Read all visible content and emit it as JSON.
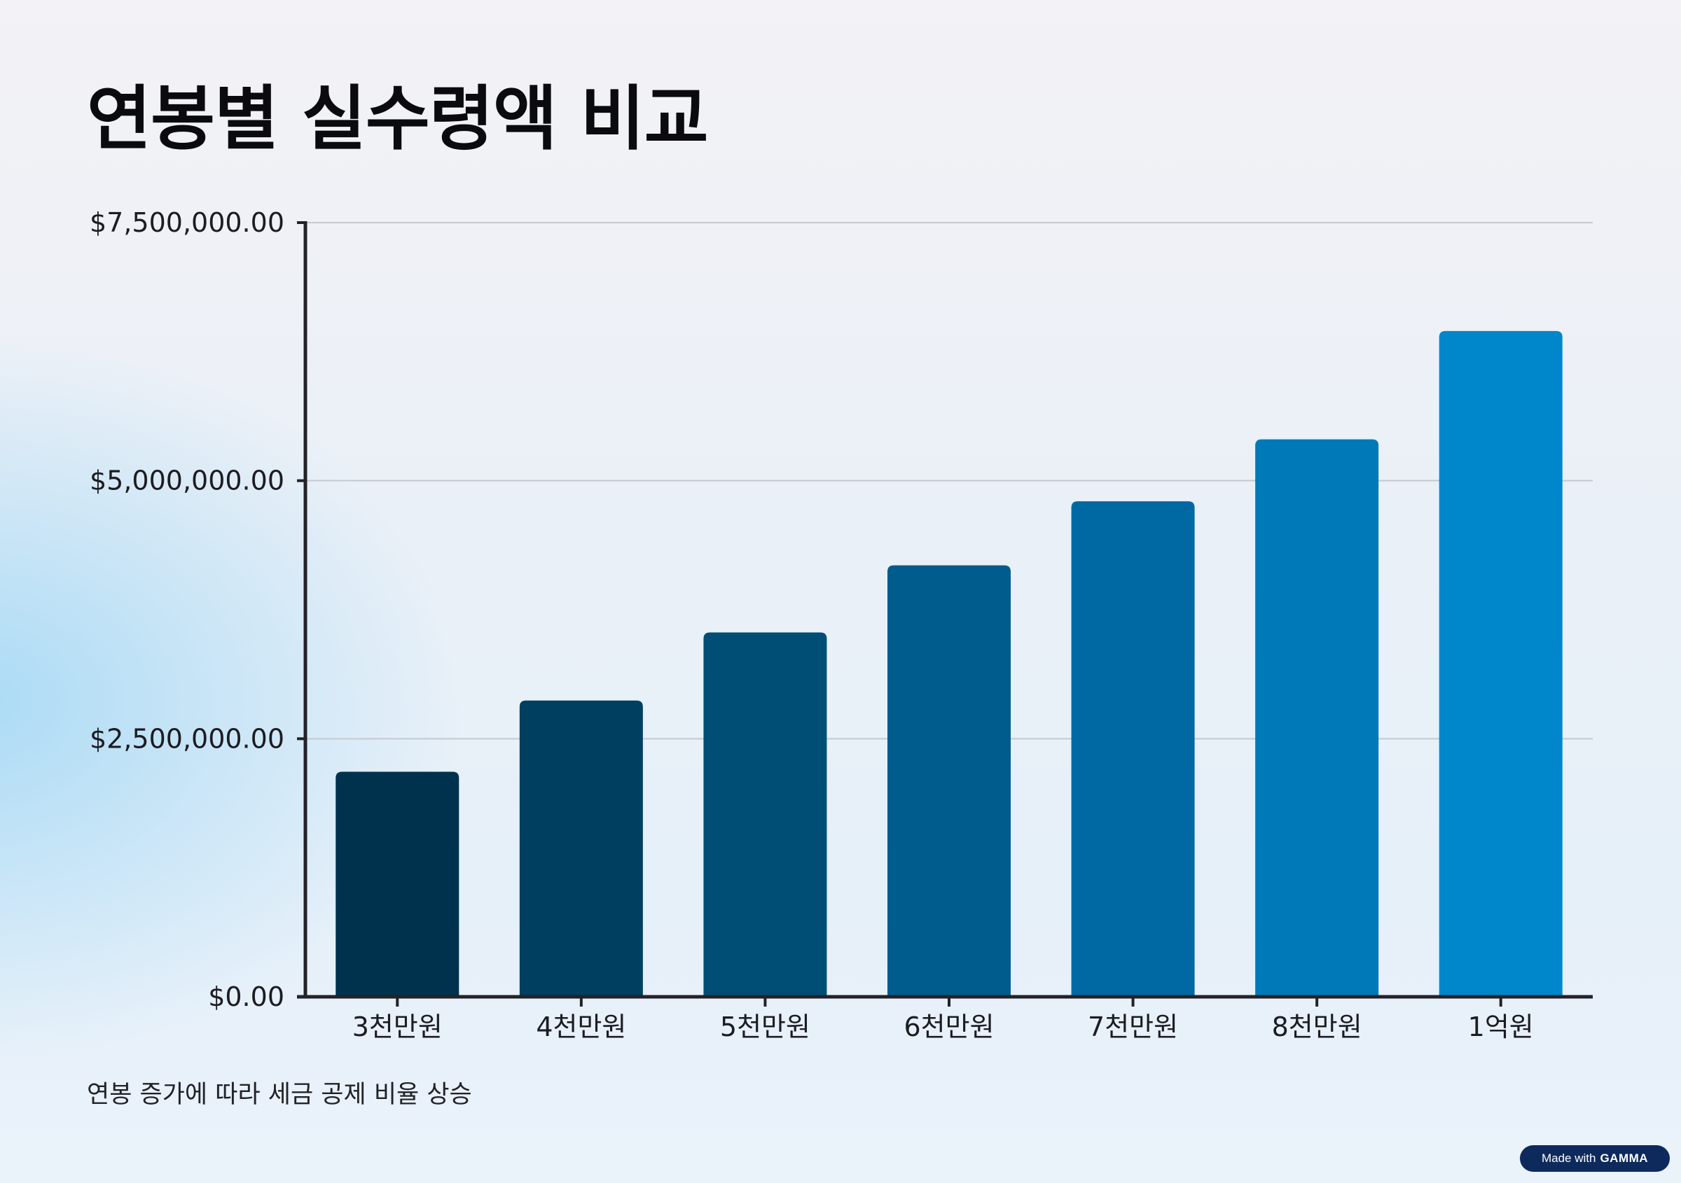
{
  "chart_data": {
    "type": "bar",
    "title": "연봉별 실수령액 비교",
    "categories": [
      "3천만원",
      "4천만원",
      "5천만원",
      "6천만원",
      "7천만원",
      "8천만원",
      "1억원"
    ],
    "values": [
      2180000,
      2870000,
      3530000,
      4180000,
      4800000,
      5400000,
      6450000
    ],
    "colors": [
      "#00324d",
      "#003f60",
      "#004e75",
      "#005c8c",
      "#0069a3",
      "#0079b8",
      "#0087cb"
    ],
    "xlabel": "",
    "ylabel": "",
    "ylim": [
      0,
      7500000
    ],
    "yticks": [
      {
        "value": 0,
        "label": "$0.00"
      },
      {
        "value": 2500000,
        "label": "$2,500,000.00"
      },
      {
        "value": 5000000,
        "label": "$5,000,000.00"
      },
      {
        "value": 7500000,
        "label": "$7,500,000.00"
      }
    ],
    "grid": true,
    "note": "연봉 증가에 따라 세금 공제 비율 상승"
  },
  "badge": {
    "prefix": "Made with",
    "brand": "GAMMA"
  }
}
